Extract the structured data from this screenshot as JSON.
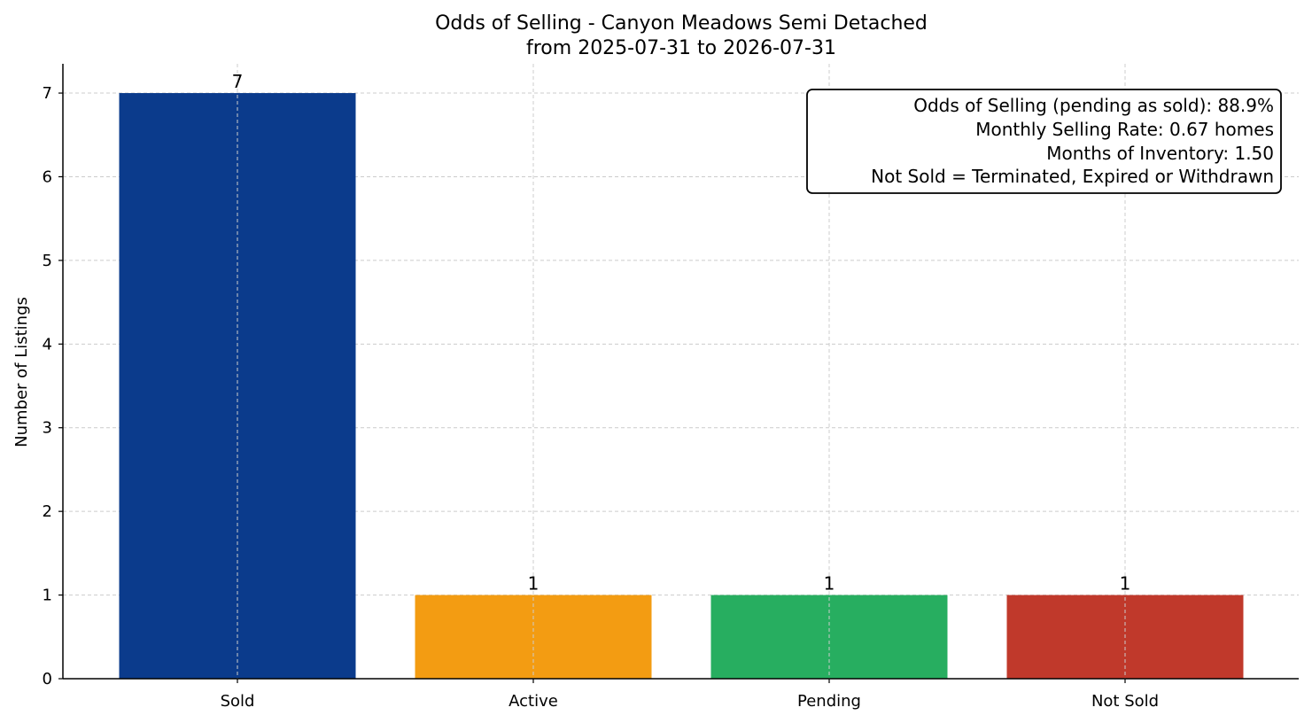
{
  "chart_data": {
    "type": "bar",
    "title": "Odds of Selling - Canyon Meadows Semi Detached",
    "subtitle": "from 2025-07-31 to 2026-07-31",
    "xlabel": "",
    "ylabel": "Number of Listings",
    "categories": [
      "Sold",
      "Active",
      "Pending",
      "Not Sold"
    ],
    "values": [
      7,
      1,
      1,
      1
    ],
    "colors": [
      "#0b3b8c",
      "#f39c12",
      "#27ae60",
      "#c0392b"
    ],
    "ylim": [
      0,
      7.35
    ],
    "yticks": [
      "0",
      "1",
      "2",
      "3",
      "4",
      "5",
      "6",
      "7"
    ],
    "grid": true,
    "info_box": {
      "placement": "top-right",
      "lines": [
        "Odds of Selling (pending as sold): 88.9%",
        "Monthly Selling Rate: 0.67 homes",
        "Months of Inventory: 1.50",
        "Not Sold = Terminated, Expired or Withdrawn"
      ]
    }
  }
}
